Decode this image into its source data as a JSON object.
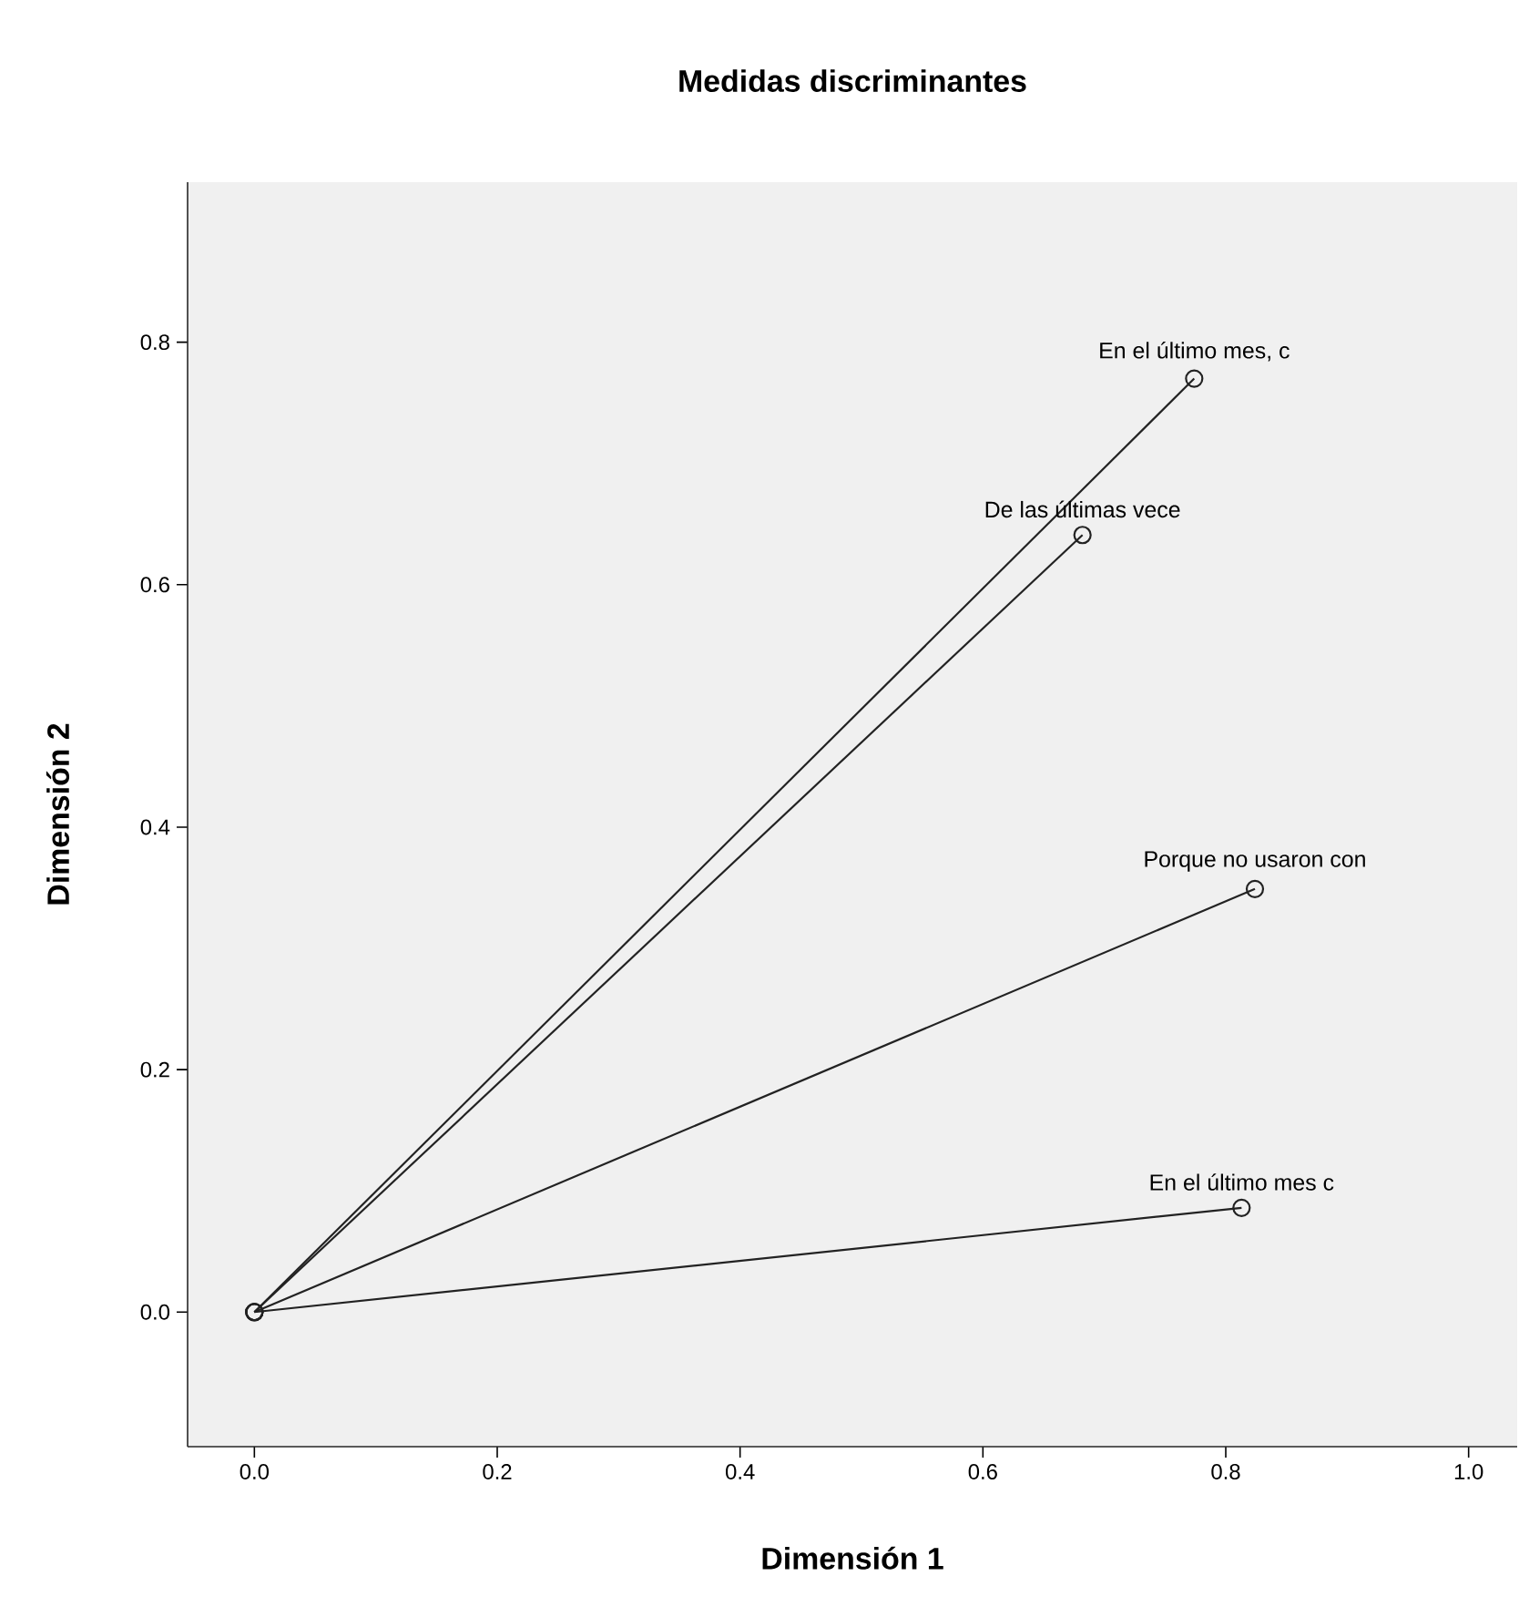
{
  "chart_data": {
    "type": "line",
    "title": "Medidas discriminantes",
    "xlabel": "Dimensión 1",
    "ylabel": "Dimensión 2",
    "series": [
      {
        "color": "#222222",
        "x": [
          0,
          0.774
        ],
        "values": [
          0,
          0.77
        ]
      },
      {
        "color": "#222222",
        "x": [
          0,
          0.682
        ],
        "values": [
          0,
          0.641
        ]
      },
      {
        "color": "#222222",
        "x": [
          0,
          0.824
        ],
        "values": [
          0,
          0.349
        ]
      },
      {
        "color": "#222222",
        "x": [
          0,
          0.813
        ],
        "values": [
          0,
          0.086
        ]
      }
    ],
    "annotations": [
      {
        "text": "En el último mes, c",
        "x": 0.774,
        "y": 0.77
      },
      {
        "text": "De las últimas vece",
        "x": 0.682,
        "y": 0.641
      },
      {
        "text": "Porque no usaron con",
        "x": 0.824,
        "y": 0.349
      },
      {
        "text": "En el  último mes c",
        "x": 0.813,
        "y": 0.086
      }
    ],
    "xlim": [
      -0.055,
      1.04
    ],
    "ylim": [
      -0.111,
      0.932
    ],
    "xticks": [
      {
        "value": 0,
        "label": "0.0"
      },
      {
        "value": 0.2,
        "label": "0.2"
      },
      {
        "value": 0.4,
        "label": "0.4"
      },
      {
        "value": 0.6,
        "label": "0.6"
      },
      {
        "value": 0.8,
        "label": "0.8"
      },
      {
        "value": 1,
        "label": "1.0"
      }
    ],
    "yticks": [
      {
        "value": 0,
        "label": "0.0"
      },
      {
        "value": 0.2,
        "label": "0.2"
      },
      {
        "value": 0.4,
        "label": "0.4"
      },
      {
        "value": 0.6,
        "label": "0.6"
      },
      {
        "value": 0.8,
        "label": "0.8"
      }
    ],
    "marker": "circle",
    "line_style": "solid",
    "grid": false
  }
}
